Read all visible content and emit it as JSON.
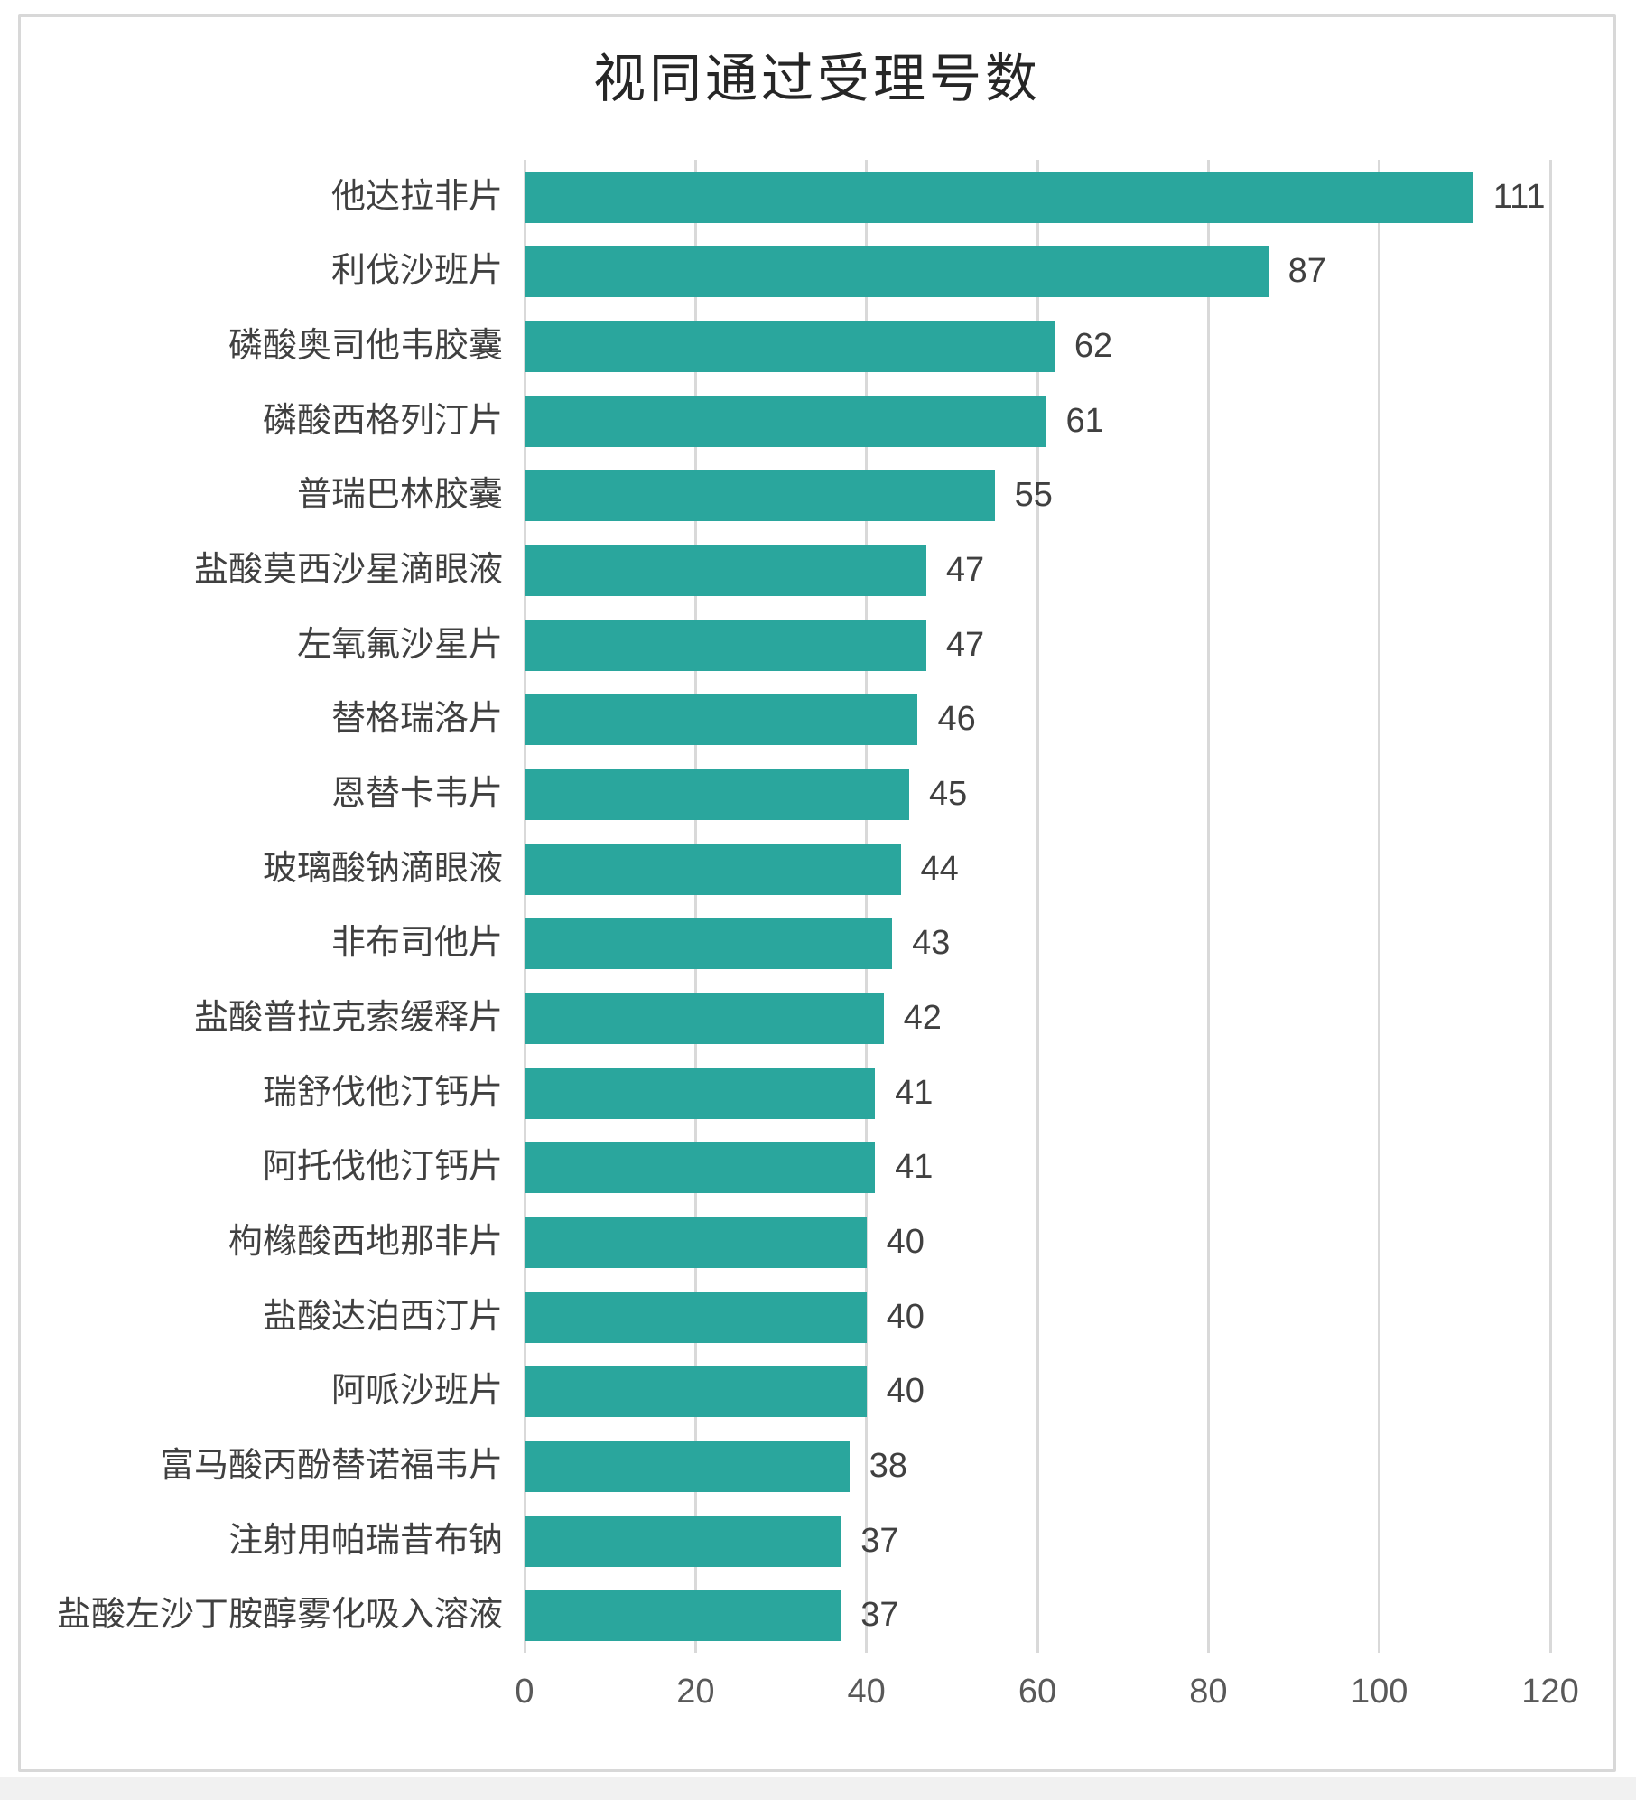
{
  "title": "视同通过受理号数",
  "colors": {
    "bar": "#2aa69d",
    "gridline": "#d9d9d9",
    "value_label": "#404040",
    "tick_label": "#595959",
    "category_label": "#404040",
    "panel_border": "#d8d8d8",
    "page_strip": "#f1f1f1"
  },
  "chart_data": {
    "type": "bar",
    "orientation": "horizontal",
    "title": "视同通过受理号数",
    "categories": [
      "他达拉非片",
      "利伐沙班片",
      "磷酸奥司他韦胶囊",
      "磷酸西格列汀片",
      "普瑞巴林胶囊",
      "盐酸莫西沙星滴眼液",
      "左氧氟沙星片",
      "替格瑞洛片",
      "恩替卡韦片",
      "玻璃酸钠滴眼液",
      "非布司他片",
      "盐酸普拉克索缓释片",
      "瑞舒伐他汀钙片",
      "阿托伐他汀钙片",
      "枸橼酸西地那非片",
      "盐酸达泊西汀片",
      "阿哌沙班片",
      "富马酸丙酚替诺福韦片",
      "注射用帕瑞昔布钠",
      "盐酸左沙丁胺醇雾化吸入溶液"
    ],
    "values": [
      111,
      87,
      62,
      61,
      55,
      47,
      47,
      46,
      45,
      44,
      43,
      42,
      41,
      41,
      40,
      40,
      40,
      38,
      37,
      37
    ],
    "xlabel": "",
    "ylabel": "",
    "xlim": [
      0,
      120
    ],
    "x_ticks": [
      0,
      20,
      40,
      60,
      80,
      100,
      120
    ],
    "grid": true,
    "value_labels": true,
    "legend": false
  }
}
